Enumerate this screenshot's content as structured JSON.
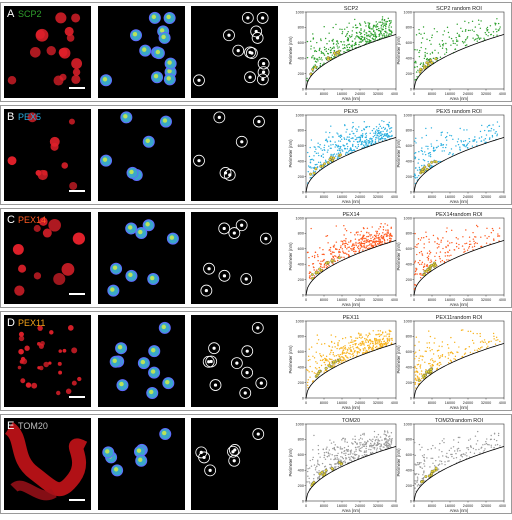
{
  "figure": {
    "panels": [
      {
        "letter": "A",
        "protein": "SCP2",
        "label_color": "#2fa02c",
        "point_color": "#2ca02c",
        "img_style": "blob",
        "n_dots": 16,
        "n_circles": 13,
        "plot_title": "SCP2",
        "random_title": "SCP2 random ROI"
      },
      {
        "letter": "B",
        "protein": "PEX5",
        "label_color": "#28a8dc",
        "point_color": "#2bb0e0",
        "img_style": "sparse",
        "n_dots": 10,
        "n_circles": 6,
        "plot_title": "PEX5",
        "random_title": "PEX5 random ROI"
      },
      {
        "letter": "C",
        "protein": "PEX14",
        "label_color": "#ff5a22",
        "point_color": "#ff5a1f",
        "img_style": "blob",
        "n_dots": 11,
        "n_circles": 8,
        "plot_title": "PEX14",
        "random_title": "PEX14random ROI"
      },
      {
        "letter": "D",
        "protein": "PEX11",
        "label_color": "#f4a21a",
        "point_color": "#f8b31d",
        "img_style": "dots",
        "n_dots": 30,
        "n_circles": 10,
        "plot_title": "PEX11",
        "random_title": "PEX11random ROI"
      },
      {
        "letter": "E",
        "protein": "TOM20",
        "label_color": "#bfbfbf",
        "point_color": "#9a9a9a",
        "img_style": "tubular",
        "n_dots": 0,
        "n_circles": 7,
        "plot_title": "TOM20",
        "random_title": "TOM20random ROI"
      }
    ],
    "axes": {
      "xlabel": "Area (nm)",
      "ylabel": "Perimeter (nm)",
      "xlim": [
        0,
        40000
      ],
      "ylim": [
        0,
        1000
      ],
      "xticks": [
        "0",
        "8000",
        "16000",
        "24000",
        "32000",
        "40000"
      ],
      "yticks": [
        "0",
        "200",
        "400",
        "600",
        "800",
        "1000"
      ],
      "highlight_color": "#e6d63a"
    }
  },
  "chart_data": [
    {
      "type": "scatter",
      "title": "SCP2",
      "xlabel": "Area (nm)",
      "ylabel": "Perimeter (nm)",
      "xlim": [
        0,
        40000
      ],
      "ylim": [
        0,
        1000
      ],
      "reference_curve": "perimeter of circle = 2*sqrt(pi*area)"
    },
    {
      "type": "scatter",
      "title": "SCP2 random ROI",
      "xlabel": "Area (nm)",
      "ylabel": "Perimeter (nm)",
      "xlim": [
        0,
        40000
      ],
      "ylim": [
        0,
        1000
      ]
    },
    {
      "type": "scatter",
      "title": "PEX5",
      "xlabel": "Area (nm)",
      "ylabel": "Perimeter (nm)",
      "xlim": [
        0,
        40000
      ],
      "ylim": [
        0,
        1000
      ]
    },
    {
      "type": "scatter",
      "title": "PEX5 random ROI",
      "xlabel": "Area (nm)",
      "ylabel": "Perimeter (nm)",
      "xlim": [
        0,
        40000
      ],
      "ylim": [
        0,
        1000
      ]
    },
    {
      "type": "scatter",
      "title": "PEX14",
      "xlabel": "Area (nm)",
      "ylabel": "Perimeter (nm)",
      "xlim": [
        0,
        40000
      ],
      "ylim": [
        0,
        1000
      ]
    },
    {
      "type": "scatter",
      "title": "PEX14random ROI",
      "xlabel": "Area (nm)",
      "ylabel": "Perimeter (nm)",
      "xlim": [
        0,
        40000
      ],
      "ylim": [
        0,
        1000
      ]
    },
    {
      "type": "scatter",
      "title": "PEX11",
      "xlabel": "Area (nm)",
      "ylabel": "Perimeter (nm)",
      "xlim": [
        0,
        40000
      ],
      "ylim": [
        0,
        1000
      ]
    },
    {
      "type": "scatter",
      "title": "PEX11random ROI",
      "xlabel": "Area (nm)",
      "ylabel": "Perimeter (nm)",
      "xlim": [
        0,
        40000
      ],
      "ylim": [
        0,
        1000
      ]
    },
    {
      "type": "scatter",
      "title": "TOM20",
      "xlabel": "Area (nm)",
      "ylabel": "Perimeter (nm)",
      "xlim": [
        0,
        40000
      ],
      "ylim": [
        0,
        1000
      ]
    },
    {
      "type": "scatter",
      "title": "TOM20random ROI",
      "xlabel": "Area (nm)",
      "ylabel": "Perimeter (nm)",
      "xlim": [
        0,
        40000
      ],
      "ylim": [
        0,
        1000
      ]
    }
  ]
}
